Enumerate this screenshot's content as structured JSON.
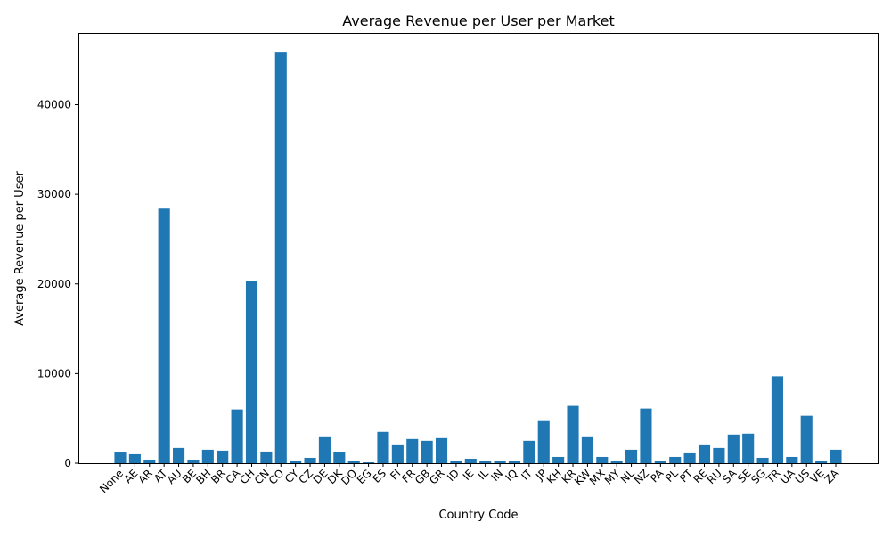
{
  "chart_data": {
    "type": "bar",
    "title": "Average Revenue per User per Market",
    "xlabel": "Country Code",
    "ylabel": "Average Revenue per User",
    "ylim": [
      0,
      48000
    ],
    "yticks": [
      0,
      10000,
      20000,
      30000,
      40000
    ],
    "grid": false,
    "legend": "none",
    "bar_color": "#1f77b4",
    "categories": [
      "None",
      "AE",
      "AR",
      "AT",
      "AU",
      "BE",
      "BH",
      "BR",
      "CA",
      "CH",
      "CN",
      "CO",
      "CY",
      "CZ",
      "DE",
      "DK",
      "DO",
      "EG",
      "ES",
      "FI",
      "FR",
      "GB",
      "GR",
      "ID",
      "IE",
      "IL",
      "IN",
      "IQ",
      "IT",
      "JP",
      "KH",
      "KR",
      "KW",
      "MX",
      "MY",
      "NL",
      "NZ",
      "PA",
      "PL",
      "PT",
      "RE",
      "RU",
      "SA",
      "SE",
      "SG",
      "TR",
      "UA",
      "US",
      "VE",
      "ZA"
    ],
    "values": [
      1200,
      1000,
      400,
      28400,
      1700,
      400,
      1500,
      1400,
      6000,
      20300,
      1300,
      45900,
      300,
      600,
      2900,
      1200,
      200,
      100,
      3500,
      2000,
      2700,
      2500,
      2800,
      300,
      500,
      200,
      200,
      200,
      2500,
      4700,
      700,
      6400,
      2900,
      700,
      200,
      1500,
      6100,
      200,
      700,
      1100,
      2000,
      1700,
      3200,
      3300,
      600,
      9700,
      700,
      5300,
      300,
      1500
    ]
  }
}
